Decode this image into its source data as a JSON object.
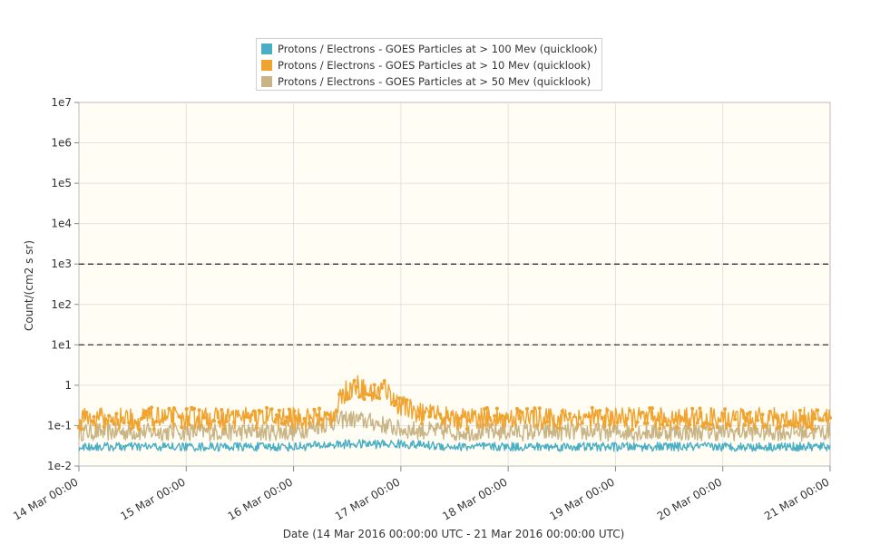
{
  "chart_data": {
    "type": "scatter",
    "title": "",
    "xlabel": "Date (14 Mar 2016 00:00:00 UTC - 21 Mar 2016 00:00:00 UTC)",
    "ylabel": "Count/(cm2 s sr)",
    "x_ticks": [
      "14 Mar 00:00",
      "15 Mar 00:00",
      "16 Mar 00:00",
      "17 Mar 00:00",
      "18 Mar 00:00",
      "19 Mar 00:00",
      "20 Mar 00:00",
      "21 Mar 00:00"
    ],
    "y_ticks": [
      "1e-2",
      "1e-1",
      "1",
      "1e1",
      "1e2",
      "1e3",
      "1e4",
      "1e5",
      "1e6",
      "1e7"
    ],
    "y_scale": "log",
    "ylim": [
      0.01,
      10000000
    ],
    "xlim": [
      "2016-03-14T00:00",
      "2016-03-21T00:00"
    ],
    "grid": true,
    "legend_position": "top-center",
    "threshold_lines": [
      1000,
      10
    ],
    "series": [
      {
        "name": "Protons / Electrons - GOES Particles at > 100 Mev (quicklook)",
        "color": "#4aafc4",
        "points": [
          [
            "14 Mar 00:00",
            0.03
          ],
          [
            "14 Mar 12:00",
            0.03
          ],
          [
            "15 Mar 00:00",
            0.03
          ],
          [
            "15 Mar 12:00",
            0.03
          ],
          [
            "16 Mar 00:00",
            0.03
          ],
          [
            "16 Mar 12:00",
            0.035
          ],
          [
            "17 Mar 00:00",
            0.035
          ],
          [
            "17 Mar 12:00",
            0.03
          ],
          [
            "18 Mar 00:00",
            0.03
          ],
          [
            "18 Mar 12:00",
            0.03
          ],
          [
            "19 Mar 00:00",
            0.03
          ],
          [
            "19 Mar 12:00",
            0.03
          ],
          [
            "20 Mar 00:00",
            0.03
          ],
          [
            "20 Mar 12:00",
            0.03
          ],
          [
            "21 Mar 00:00",
            0.03
          ]
        ]
      },
      {
        "name": "Protons / Electrons - GOES Particles at > 10 Mev (quicklook)",
        "color": "#f0a32e",
        "points": [
          [
            "14 Mar 00:00",
            0.15
          ],
          [
            "14 Mar 12:00",
            0.15
          ],
          [
            "15 Mar 00:00",
            0.15
          ],
          [
            "15 Mar 12:00",
            0.15
          ],
          [
            "16 Mar 00:00",
            0.15
          ],
          [
            "16 Mar 08:00",
            0.15
          ],
          [
            "16 Mar 12:00",
            0.8
          ],
          [
            "16 Mar 14:00",
            1.0
          ],
          [
            "16 Mar 18:00",
            0.6
          ],
          [
            "16 Mar 20:00",
            0.9
          ],
          [
            "17 Mar 00:00",
            0.3
          ],
          [
            "17 Mar 06:00",
            0.18
          ],
          [
            "17 Mar 12:00",
            0.15
          ],
          [
            "18 Mar 00:00",
            0.15
          ],
          [
            "18 Mar 12:00",
            0.15
          ],
          [
            "19 Mar 00:00",
            0.15
          ],
          [
            "19 Mar 12:00",
            0.15
          ],
          [
            "20 Mar 00:00",
            0.15
          ],
          [
            "20 Mar 12:00",
            0.15
          ],
          [
            "21 Mar 00:00",
            0.15
          ]
        ]
      },
      {
        "name": "Protons / Electrons - GOES Particles at > 50 Mev (quicklook)",
        "color": "#c9b485",
        "points": [
          [
            "14 Mar 00:00",
            0.07
          ],
          [
            "14 Mar 12:00",
            0.07
          ],
          [
            "15 Mar 00:00",
            0.07
          ],
          [
            "15 Mar 12:00",
            0.07
          ],
          [
            "16 Mar 00:00",
            0.07
          ],
          [
            "16 Mar 12:00",
            0.15
          ],
          [
            "16 Mar 18:00",
            0.12
          ],
          [
            "17 Mar 00:00",
            0.08
          ],
          [
            "17 Mar 12:00",
            0.07
          ],
          [
            "18 Mar 00:00",
            0.07
          ],
          [
            "18 Mar 12:00",
            0.07
          ],
          [
            "19 Mar 00:00",
            0.07
          ],
          [
            "19 Mar 12:00",
            0.07
          ],
          [
            "20 Mar 00:00",
            0.07
          ],
          [
            "20 Mar 12:00",
            0.07
          ],
          [
            "21 Mar 00:00",
            0.07
          ]
        ]
      }
    ]
  }
}
